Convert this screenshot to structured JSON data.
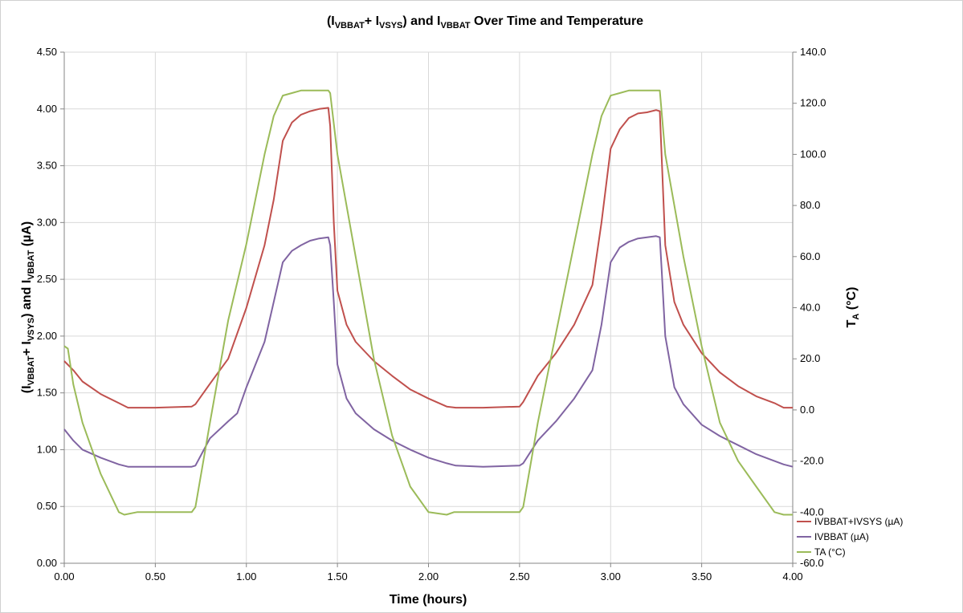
{
  "chart_data": {
    "type": "line",
    "title": {
      "p1": "(I",
      "s1": "VBBAT",
      "p2": "+ I",
      "s2": "VSYS",
      "p3": ") and I",
      "s3": "VBBAT",
      "p4": " Over Time and Temperature"
    },
    "xlabel": "Time (hours)",
    "ylabel": {
      "p1": "(I",
      "s1": "VBBAT",
      "p2": "+ I",
      "s2": "VSYS",
      "p3": ") and I",
      "s3": "VBBAT",
      "p4": " (µA)"
    },
    "y2label": {
      "p1": "T",
      "s1": "A",
      "p2": " (°C)"
    },
    "xlim": [
      0,
      4
    ],
    "ylim": [
      0,
      4.5
    ],
    "y2lim": [
      -60,
      140
    ],
    "grid": true,
    "legend_position": "bottom-right",
    "x_ticks": [
      "0.00",
      "0.50",
      "1.00",
      "1.50",
      "2.00",
      "2.50",
      "3.00",
      "3.50",
      "4.00"
    ],
    "y_ticks": [
      "0.00",
      "0.50",
      "1.00",
      "1.50",
      "2.00",
      "2.50",
      "3.00",
      "3.50",
      "4.00",
      "4.50"
    ],
    "y2_ticks": [
      "-60.0",
      "-40.0",
      "-20.0",
      "0.0",
      "20.0",
      "40.0",
      "60.0",
      "80.0",
      "100.0",
      "120.0",
      "140.0"
    ],
    "series": [
      {
        "name": "IVBBAT+IVSYS (µA)",
        "color": "#c0504d",
        "axis": "left",
        "x": [
          0.0,
          0.05,
          0.1,
          0.2,
          0.3,
          0.35,
          0.5,
          0.7,
          0.72,
          0.8,
          0.9,
          1.0,
          1.1,
          1.15,
          1.2,
          1.25,
          1.3,
          1.35,
          1.4,
          1.45,
          1.46,
          1.48,
          1.5,
          1.55,
          1.6,
          1.7,
          1.8,
          1.9,
          2.0,
          2.1,
          2.15,
          2.3,
          2.5,
          2.52,
          2.6,
          2.7,
          2.8,
          2.9,
          2.95,
          3.0,
          3.05,
          3.1,
          3.15,
          3.2,
          3.25,
          3.27,
          3.28,
          3.3,
          3.35,
          3.4,
          3.5,
          3.6,
          3.7,
          3.8,
          3.9,
          3.95,
          4.0
        ],
        "y": [
          1.78,
          1.7,
          1.6,
          1.49,
          1.41,
          1.37,
          1.37,
          1.38,
          1.4,
          1.58,
          1.8,
          2.25,
          2.8,
          3.2,
          3.72,
          3.88,
          3.95,
          3.98,
          4.0,
          4.01,
          3.85,
          3.0,
          2.4,
          2.1,
          1.95,
          1.78,
          1.65,
          1.53,
          1.45,
          1.38,
          1.37,
          1.37,
          1.38,
          1.42,
          1.65,
          1.85,
          2.1,
          2.45,
          3.0,
          3.65,
          3.82,
          3.92,
          3.96,
          3.97,
          3.99,
          3.98,
          3.6,
          2.8,
          2.3,
          2.1,
          1.85,
          1.68,
          1.56,
          1.47,
          1.41,
          1.37,
          1.37
        ]
      },
      {
        "name": "IVBBAT (µA)",
        "color": "#8064a2",
        "axis": "left",
        "x": [
          0.0,
          0.05,
          0.1,
          0.2,
          0.3,
          0.35,
          0.5,
          0.7,
          0.72,
          0.8,
          0.9,
          0.95,
          1.0,
          1.1,
          1.15,
          1.2,
          1.25,
          1.3,
          1.35,
          1.4,
          1.45,
          1.46,
          1.48,
          1.5,
          1.55,
          1.6,
          1.7,
          1.8,
          1.9,
          2.0,
          2.1,
          2.15,
          2.3,
          2.5,
          2.52,
          2.6,
          2.7,
          2.8,
          2.9,
          2.95,
          3.0,
          3.05,
          3.1,
          3.15,
          3.2,
          3.25,
          3.27,
          3.28,
          3.3,
          3.35,
          3.4,
          3.5,
          3.6,
          3.7,
          3.8,
          3.9,
          3.95,
          4.0
        ],
        "y": [
          1.18,
          1.08,
          1.0,
          0.93,
          0.87,
          0.85,
          0.85,
          0.85,
          0.86,
          1.1,
          1.25,
          1.32,
          1.55,
          1.95,
          2.3,
          2.65,
          2.75,
          2.8,
          2.84,
          2.86,
          2.87,
          2.8,
          2.3,
          1.75,
          1.45,
          1.32,
          1.18,
          1.08,
          1.0,
          0.93,
          0.88,
          0.86,
          0.85,
          0.86,
          0.88,
          1.08,
          1.25,
          1.45,
          1.7,
          2.1,
          2.65,
          2.78,
          2.83,
          2.86,
          2.87,
          2.88,
          2.87,
          2.6,
          2.0,
          1.55,
          1.4,
          1.22,
          1.12,
          1.04,
          0.96,
          0.9,
          0.87,
          0.85
        ]
      },
      {
        "name": "TA (°C)",
        "color": "#9bbb59",
        "axis": "right",
        "x": [
          0.0,
          0.02,
          0.05,
          0.1,
          0.2,
          0.3,
          0.33,
          0.4,
          0.5,
          0.6,
          0.7,
          0.72,
          0.8,
          0.9,
          1.0,
          1.1,
          1.15,
          1.2,
          1.25,
          1.3,
          1.35,
          1.4,
          1.45,
          1.46,
          1.5,
          1.6,
          1.7,
          1.8,
          1.9,
          2.0,
          2.1,
          2.14,
          2.2,
          2.3,
          2.4,
          2.5,
          2.52,
          2.6,
          2.7,
          2.8,
          2.9,
          2.95,
          3.0,
          3.05,
          3.1,
          3.15,
          3.2,
          3.25,
          3.27,
          3.3,
          3.4,
          3.5,
          3.6,
          3.7,
          3.8,
          3.9,
          3.95,
          4.0
        ],
        "y": [
          25,
          24,
          10,
          -5,
          -25,
          -40,
          -41,
          -40,
          -40,
          -40,
          -40,
          -38,
          -5,
          35,
          65,
          100,
          115,
          123,
          124,
          125,
          125,
          125,
          125,
          124,
          100,
          60,
          20,
          -10,
          -30,
          -40,
          -41,
          -40,
          -40,
          -40,
          -40,
          -40,
          -38,
          -5,
          30,
          65,
          100,
          115,
          123,
          124,
          125,
          125,
          125,
          125,
          125,
          100,
          60,
          25,
          -5,
          -20,
          -30,
          -40,
          -41,
          -41
        ]
      }
    ]
  }
}
